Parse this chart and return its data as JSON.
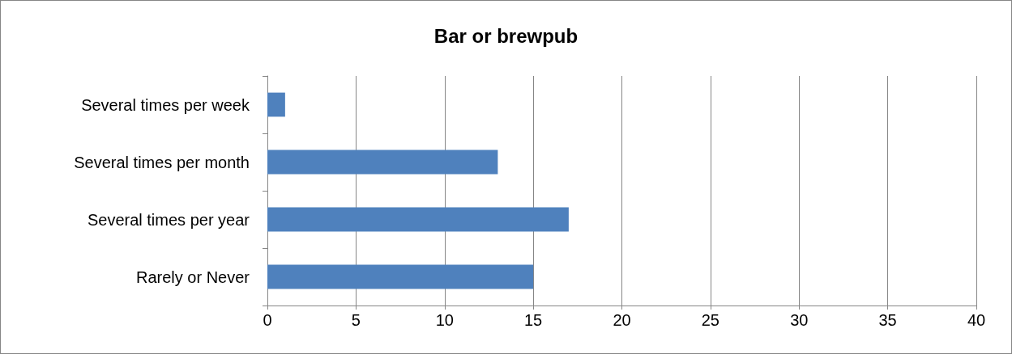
{
  "chart_data": {
    "type": "bar",
    "orientation": "horizontal",
    "title": "Bar or brewpub",
    "categories": [
      "Several times per week",
      "Several times per month",
      "Several times per year",
      "Rarely or Never"
    ],
    "values": [
      1,
      13,
      17,
      15
    ],
    "color": "#4f81bd",
    "xlim": [
      0,
      40
    ],
    "xticks": [
      0,
      5,
      10,
      15,
      20,
      25,
      30,
      35,
      40
    ],
    "grid": "x"
  }
}
